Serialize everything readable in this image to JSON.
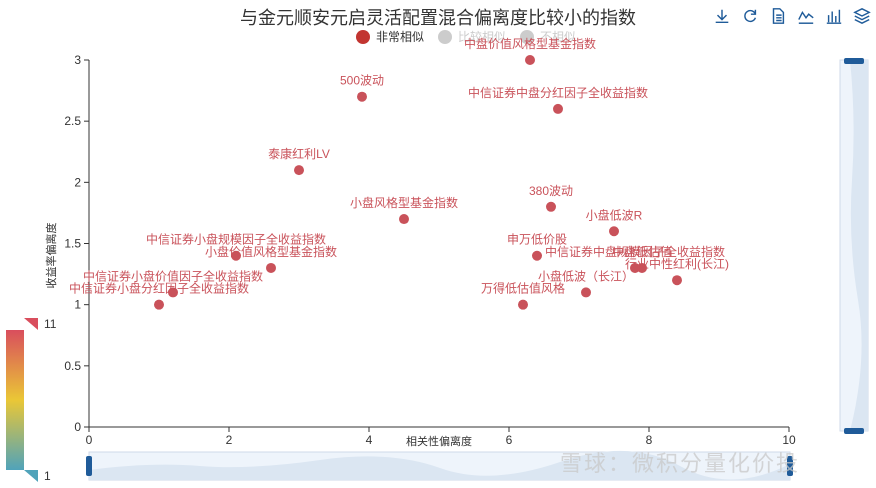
{
  "title": "与金元顺安元启灵活配置混合偏离度比较小的指数",
  "toolbar": [
    {
      "name": "download-icon",
      "label": "download"
    },
    {
      "name": "refresh-icon",
      "label": "refresh"
    },
    {
      "name": "data-view-icon",
      "label": "data view"
    },
    {
      "name": "line-chart-icon",
      "label": "line"
    },
    {
      "name": "bar-chart-icon",
      "label": "bar"
    },
    {
      "name": "stack-icon",
      "label": "stack"
    }
  ],
  "legend": [
    {
      "label": "非常相似",
      "color": "#c23531",
      "active": true
    },
    {
      "label": "比较相似",
      "color": "#cccccc",
      "active": false
    },
    {
      "label": "不相似",
      "color": "#cccccc",
      "active": false
    }
  ],
  "watermark": "雪球：微积分量化价投",
  "visual_map": {
    "max_label": "11",
    "min_label": "1",
    "colors": [
      "#d94e5d",
      "#eac736",
      "#50a3ba"
    ]
  },
  "chart_data": {
    "type": "scatter",
    "xlabel": "相关性偏离度",
    "ylabel": "收益率偏离度",
    "xlim": [
      0,
      10
    ],
    "ylim": [
      0,
      3
    ],
    "xticks": [
      "0",
      "2",
      "4",
      "6",
      "8",
      "10"
    ],
    "yticks": [
      "0",
      "0.5",
      "1",
      "1.5",
      "2",
      "2.5",
      "3"
    ],
    "point_color": "#c9525a",
    "points": [
      {
        "label": "中盘价值风格型基金指数",
        "x": 6.3,
        "y": 3.0
      },
      {
        "label": "500波动",
        "x": 3.9,
        "y": 2.7
      },
      {
        "label": "中信证券中盘分红因子全收益指数",
        "x": 6.7,
        "y": 2.6
      },
      {
        "label": "泰康红利LV",
        "x": 3.0,
        "y": 2.1
      },
      {
        "label": "380波动",
        "x": 6.6,
        "y": 1.8
      },
      {
        "label": "小盘风格型基金指数",
        "x": 4.5,
        "y": 1.7
      },
      {
        "label": "小盘低波R",
        "x": 7.5,
        "y": 1.6
      },
      {
        "label": "中信证券小盘规模因子全收益指数",
        "x": 2.1,
        "y": 1.4
      },
      {
        "label": "申万低价股",
        "x": 6.4,
        "y": 1.4
      },
      {
        "label": "小盘价值风格型基金指数",
        "x": 2.6,
        "y": 1.3
      },
      {
        "label": "中信证券中盘规模因子全收益指数",
        "x": 7.8,
        "y": 1.3
      },
      {
        "label": "中盘低估值",
        "x": 7.9,
        "y": 1.3
      },
      {
        "label": "行业中性红利(长江)",
        "x": 8.4,
        "y": 1.2
      },
      {
        "label": "中信证券小盘价值因子全收益指数",
        "x": 1.2,
        "y": 1.1
      },
      {
        "label": "中信证券小盘分红因子全收益指数",
        "x": 1.0,
        "y": 1.0
      },
      {
        "label": "小盘低波（长江）",
        "x": 7.1,
        "y": 1.1
      },
      {
        "label": "万得低估值风格",
        "x": 6.2,
        "y": 1.0
      }
    ]
  }
}
